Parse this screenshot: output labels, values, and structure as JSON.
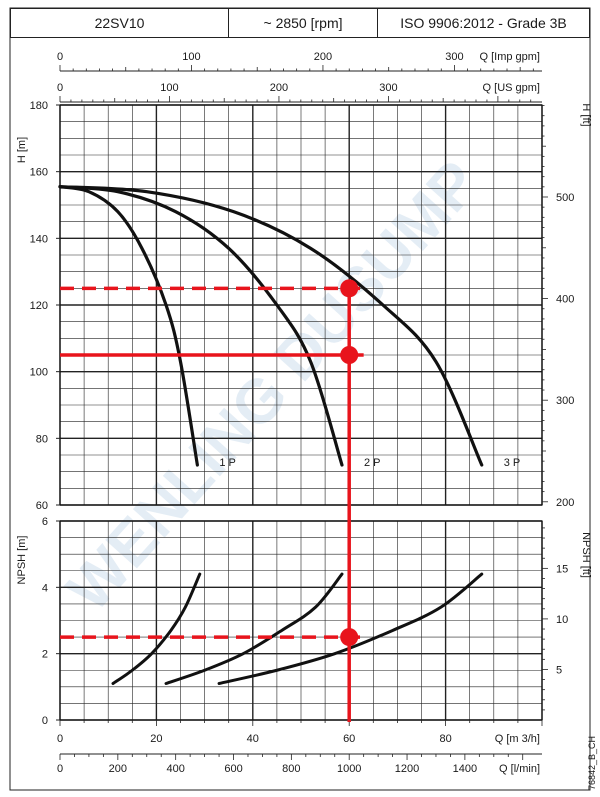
{
  "header": {
    "model": "22SV10",
    "speed": "~ 2850 [rpm]",
    "standard": "ISO 9906:2012 - Grade 3B"
  },
  "watermark_text": "WENLING DUSUMP",
  "doc_code": "76842_B_CH",
  "colors": {
    "curve": "#111111",
    "grid": "#222222",
    "operating_point": "#e8141c"
  },
  "chart_data": [
    {
      "type": "line",
      "title": "",
      "xlabel": "Q [m 3/h]",
      "ylabel": "H [m]",
      "ylabel_right": "H [ft]",
      "xlim": [
        0,
        100
      ],
      "ylim": [
        60,
        180
      ],
      "grid": true,
      "top_axes": [
        {
          "label": "Q [Imp gpm]",
          "ticks": [
            "0",
            "100",
            "200",
            "300"
          ],
          "values": [
            0,
            100,
            200,
            300
          ],
          "unit_factor": 3.6661,
          "range": [
            0,
            360
          ]
        },
        {
          "label": "Q [US gpm]",
          "ticks": [
            "0",
            "100",
            "200",
            "300"
          ],
          "values": [
            0,
            100,
            200,
            300
          ],
          "unit_factor": 4.4029,
          "range": [
            0,
            440
          ]
        }
      ],
      "y_ticks": [
        "60",
        "80",
        "100",
        "120",
        "140",
        "160",
        "180"
      ],
      "y_right_ticks": [
        "200",
        "300",
        "400",
        "500"
      ],
      "y_right_values": [
        200,
        300,
        400,
        500
      ],
      "y_right_factor": 3.2808,
      "series": [
        {
          "name": "1 P",
          "x": [
            0,
            6,
            12,
            17,
            22,
            25,
            28.5
          ],
          "y": [
            155.5,
            154,
            148,
            137,
            120,
            103,
            72
          ]
        },
        {
          "name": "2 P",
          "x": [
            0,
            12,
            24,
            35,
            45,
            52,
            58.5
          ],
          "y": [
            155.5,
            154,
            148,
            137,
            120,
            103,
            72
          ]
        },
        {
          "name": "3 P",
          "x": [
            0,
            18,
            36,
            52,
            67,
            78,
            87.5
          ],
          "y": [
            155.5,
            154,
            148,
            137,
            120,
            103,
            72
          ]
        }
      ],
      "operating_points": [
        {
          "x": 60,
          "y": 125
        },
        {
          "x": 60,
          "y": 105
        }
      ],
      "reference_lines": [
        {
          "y": 125,
          "style": "dashed",
          "x_from": 0,
          "x_to": 63
        },
        {
          "y": 105,
          "style": "solid",
          "x_from": 0,
          "x_to": 63
        }
      ]
    },
    {
      "type": "line",
      "title": "",
      "xlabel": "Q [m 3/h]",
      "xlabel2": "Q [l/min]",
      "ylabel": "NPSH [m]",
      "ylabel_right": "NPSH [ft]",
      "xlim": [
        0,
        100
      ],
      "ylim": [
        0,
        6
      ],
      "grid": true,
      "x_ticks": [
        "0",
        "20",
        "40",
        "60",
        "80"
      ],
      "x_tick_values": [
        0,
        20,
        40,
        60,
        80
      ],
      "x2_ticks": [
        "0",
        "200",
        "400",
        "600",
        "800",
        "1000",
        "1200",
        "1400"
      ],
      "x2_values": [
        0,
        200,
        400,
        600,
        800,
        1000,
        1200,
        1400
      ],
      "x2_factor": 16.6667,
      "y_ticks": [
        "0",
        "2",
        "4",
        "6"
      ],
      "y_right_ticks": [
        "5",
        "10",
        "15"
      ],
      "y_right_values": [
        5,
        10,
        15
      ],
      "y_right_factor": 3.2808,
      "series": [
        {
          "name": "1 P",
          "x": [
            11,
            15,
            19,
            23,
            26,
            29
          ],
          "y": [
            1.1,
            1.5,
            2.0,
            2.7,
            3.4,
            4.4
          ]
        },
        {
          "name": "2 P",
          "x": [
            22,
            30,
            38,
            46,
            53,
            58.5
          ],
          "y": [
            1.1,
            1.5,
            2.0,
            2.7,
            3.4,
            4.4
          ]
        },
        {
          "name": "3 P",
          "x": [
            33,
            45,
            57,
            69,
            79,
            87.5
          ],
          "y": [
            1.1,
            1.5,
            2.0,
            2.7,
            3.4,
            4.4
          ]
        }
      ],
      "operating_points": [
        {
          "x": 60,
          "y": 2.5
        }
      ],
      "reference_lines": [
        {
          "y": 2.5,
          "style": "dashed",
          "x_from": 0,
          "x_to": 63
        }
      ]
    }
  ]
}
